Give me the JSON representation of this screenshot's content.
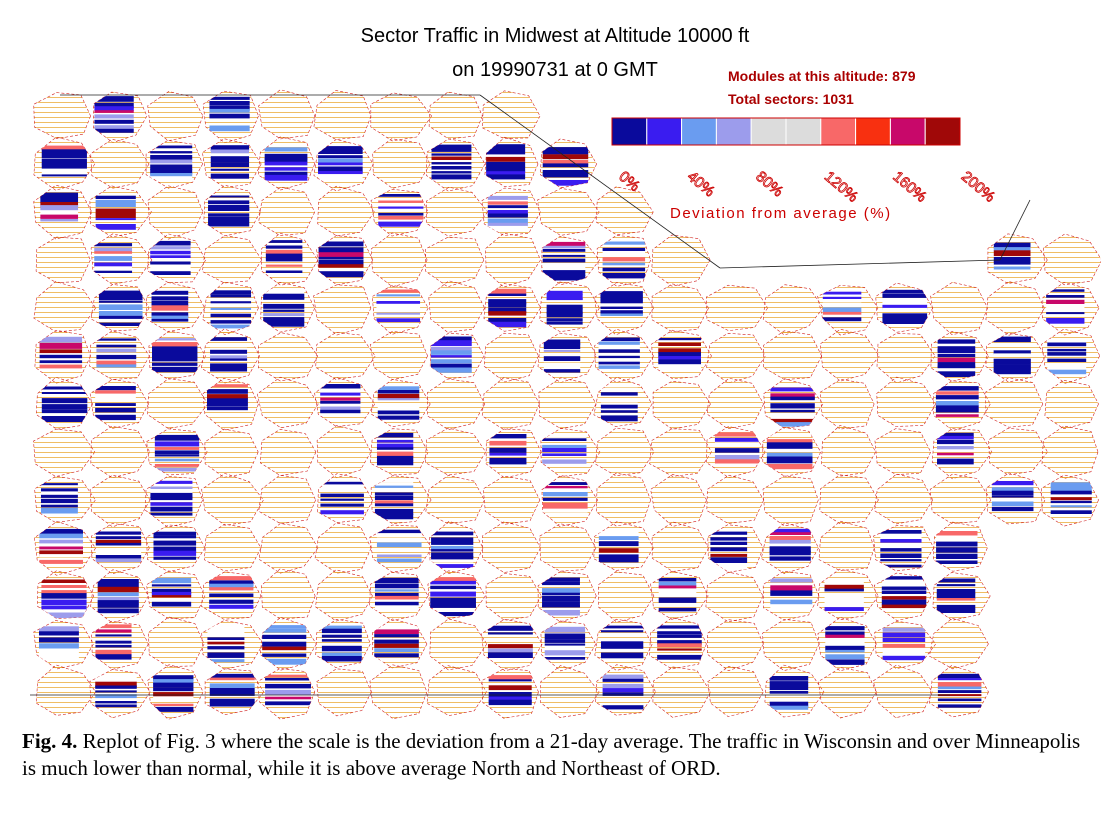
{
  "figure": {
    "title_line1": "Sector Traffic in Midwest at Altitude 10000 ft",
    "title_line2": "on 19990731 at 0 GMT",
    "info_line1": "Modules at this altitude: 879",
    "info_line2": "Total sectors: 1031",
    "legend": {
      "colors": [
        "#0a0a9c",
        "#3a1cf0",
        "#6a9cf0",
        "#9c9cec",
        "#dcdcdc",
        "#dcdcdc",
        "#f86868",
        "#f83010",
        "#c8086a",
        "#a00808"
      ],
      "labels": [
        "0%",
        "40%",
        "80%",
        "120%",
        "160%",
        "200%"
      ],
      "axis_label": "Deviation from average (%)"
    },
    "caption": {
      "label": "Fig. 4.",
      "text": "Replot of Fig. 3 where the scale is the deviation from a 21-day average. The traffic in Wisconsin and over Minneapolis is much lower than normal, while it is above average North and Northeast of ORD."
    }
  }
}
